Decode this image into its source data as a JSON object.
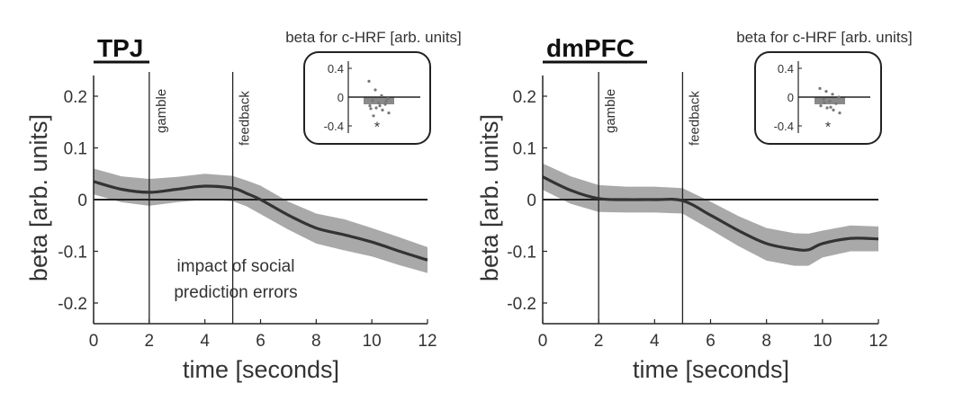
{
  "chart_data": [
    {
      "type": "line",
      "title": "TPJ",
      "xlabel": "time [seconds]",
      "ylabel": "beta [arb. units]",
      "xlim": [
        0,
        12
      ],
      "ylim": [
        -0.24,
        0.24
      ],
      "xticks": [
        "0",
        "2",
        "4",
        "6",
        "8",
        "10",
        "12"
      ],
      "yticks": [
        "0.2",
        "0.1",
        "0",
        "-0.1",
        "-0.2"
      ],
      "events": [
        {
          "x": 2,
          "label": "gamble"
        },
        {
          "x": 5,
          "label": "feedback"
        }
      ],
      "annotation": [
        "impact of social",
        "prediction errors"
      ],
      "series": [
        {
          "name": "mean",
          "x": [
            0,
            1,
            2,
            3,
            4,
            5,
            5.5,
            6,
            7,
            8,
            9,
            10,
            11,
            12
          ],
          "values": [
            0.035,
            0.02,
            0.014,
            0.02,
            0.026,
            0.022,
            0.012,
            0.0,
            -0.03,
            -0.055,
            -0.068,
            -0.082,
            -0.1,
            -0.117
          ],
          "lower": [
            0.01,
            -0.005,
            -0.012,
            -0.005,
            0.0,
            -0.003,
            -0.013,
            -0.028,
            -0.058,
            -0.085,
            -0.098,
            -0.11,
            -0.127,
            -0.142
          ],
          "upper": [
            0.06,
            0.045,
            0.04,
            0.044,
            0.05,
            0.046,
            0.037,
            0.027,
            -0.004,
            -0.027,
            -0.038,
            -0.055,
            -0.073,
            -0.092
          ]
        }
      ],
      "inset": {
        "title": "beta for c-HRF [arb. units]",
        "yticks": [
          "0.4",
          "0",
          "-0.4"
        ],
        "ylim": [
          -0.5,
          0.5
        ],
        "bar_value": -0.1,
        "points": [
          0.22,
          0.1,
          0.02,
          -0.02,
          -0.05,
          -0.08,
          -0.1,
          -0.12,
          -0.15,
          -0.18,
          -0.22,
          -0.26,
          -0.12,
          -0.06,
          -0.16
        ],
        "significance": "*"
      }
    },
    {
      "type": "line",
      "title": "dmPFC",
      "xlabel": "time [seconds]",
      "ylabel": "beta [arb. units]",
      "xlim": [
        0,
        12
      ],
      "ylim": [
        -0.24,
        0.24
      ],
      "xticks": [
        "0",
        "2",
        "4",
        "6",
        "8",
        "10",
        "12"
      ],
      "yticks": [
        "0.2",
        "0.1",
        "0",
        "-0.1",
        "-0.2"
      ],
      "events": [
        {
          "x": 2,
          "label": "gamble"
        },
        {
          "x": 5,
          "label": "feedback"
        }
      ],
      "series": [
        {
          "name": "mean",
          "x": [
            0,
            1,
            2,
            3,
            4,
            5,
            6,
            7,
            8,
            9,
            9.5,
            10,
            11,
            12
          ],
          "values": [
            0.044,
            0.018,
            0.002,
            0.0,
            0.0,
            -0.002,
            -0.03,
            -0.06,
            -0.085,
            -0.096,
            -0.097,
            -0.085,
            -0.075,
            -0.076
          ],
          "lower": [
            0.019,
            -0.008,
            -0.024,
            -0.025,
            -0.025,
            -0.027,
            -0.058,
            -0.09,
            -0.118,
            -0.128,
            -0.128,
            -0.112,
            -0.1,
            -0.1
          ],
          "upper": [
            0.07,
            0.045,
            0.028,
            0.025,
            0.025,
            0.022,
            -0.004,
            -0.032,
            -0.055,
            -0.065,
            -0.066,
            -0.06,
            -0.05,
            -0.052
          ]
        }
      ],
      "inset": {
        "title": "beta for c-HRF [arb. units]",
        "yticks": [
          "0.4",
          "0",
          "-0.4"
        ],
        "ylim": [
          -0.5,
          0.5
        ],
        "bar_value": -0.1,
        "points": [
          0.12,
          0.08,
          0.04,
          0.0,
          -0.03,
          -0.06,
          -0.09,
          -0.12,
          -0.15,
          -0.18,
          -0.22,
          -0.08,
          -0.14
        ],
        "significance": "*"
      }
    }
  ]
}
